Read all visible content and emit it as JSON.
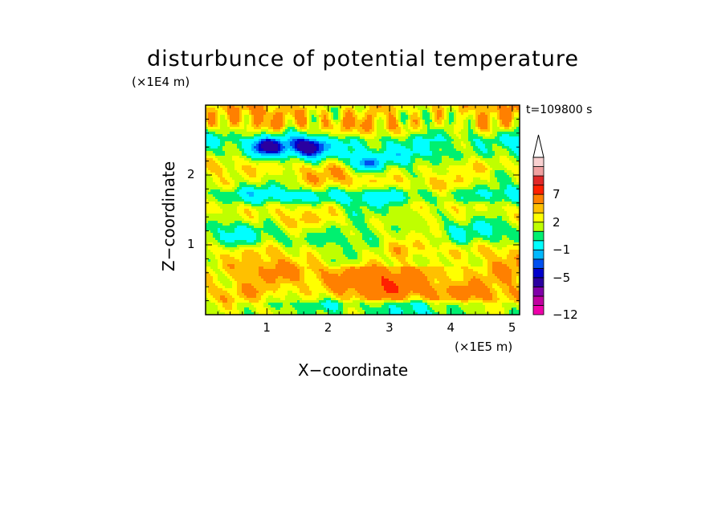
{
  "chart_data": {
    "type": "heatmap",
    "title": "disturbunce of potential temperature",
    "xlabel": "X−coordinate",
    "ylabel": "Z−coordinate",
    "x_scale_label": "(×1E5 m)",
    "y_scale_label": "(×1E4 m)",
    "time_label": "t=109800 s",
    "xlim": [
      0,
      5.12
    ],
    "ylim": [
      0,
      3.0
    ],
    "x_ticks": [
      "1",
      "2",
      "3",
      "4",
      "5"
    ],
    "y_ticks": [
      "1",
      "2"
    ],
    "colorbar": {
      "levels": [
        -12,
        -10,
        -8,
        -6,
        -5,
        -4,
        -3,
        -1,
        0,
        1,
        2,
        3,
        5,
        7,
        9,
        11
      ],
      "labeled_levels": [
        "−12",
        "−5",
        "−1",
        "2",
        "7"
      ],
      "colors": [
        "#ee00aa",
        "#c000a0",
        "#8000a8",
        "#2a00a0",
        "#0000cc",
        "#0050f0",
        "#00b8ff",
        "#00ffff",
        "#00f070",
        "#bfff00",
        "#ffff00",
        "#ffc000",
        "#ff8000",
        "#ff2000",
        "#e02828",
        "#f0a0a0",
        "#f8d0d0"
      ],
      "extend": "max"
    },
    "field_description_bands": [
      {
        "z_range": [
          0.0,
          0.2
        ],
        "value": 0
      },
      {
        "z_range": [
          0.2,
          0.7
        ],
        "value": 2.5
      },
      {
        "z_range": [
          0.7,
          1.0
        ],
        "value": 1.5
      },
      {
        "z_range": [
          1.0,
          1.3
        ],
        "value": 0
      },
      {
        "z_range": [
          1.3,
          1.6
        ],
        "value": 1
      },
      {
        "z_range": [
          1.6,
          1.8
        ],
        "value": -1
      },
      {
        "z_range": [
          1.8,
          2.2
        ],
        "value": 1.5
      },
      {
        "z_range": [
          2.2,
          2.6
        ],
        "value": -1
      },
      {
        "z_range": [
          2.6,
          3.0
        ],
        "value": 2
      }
    ],
    "minima": [
      {
        "x": 1.0,
        "z": 2.4,
        "value": -5
      },
      {
        "x": 1.7,
        "z": 2.4,
        "value": -5
      },
      {
        "x": 2.6,
        "z": 2.15,
        "value": -4
      }
    ]
  }
}
